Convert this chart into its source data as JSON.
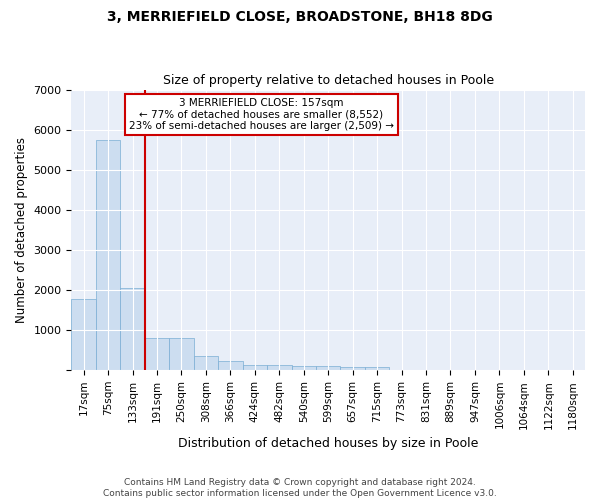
{
  "title": "3, MERRIEFIELD CLOSE, BROADSTONE, BH18 8DG",
  "subtitle": "Size of property relative to detached houses in Poole",
  "xlabel": "Distribution of detached houses by size in Poole",
  "ylabel": "Number of detached properties",
  "bar_color": "#ccddf0",
  "bar_edge_color": "#7aadd4",
  "background_color": "#e8eef8",
  "grid_color": "#ffffff",
  "annotation_text": "3 MERRIEFIELD CLOSE: 157sqm\n← 77% of detached houses are smaller (8,552)\n23% of semi-detached houses are larger (2,509) →",
  "annotation_box_color": "#cc0000",
  "vline_color": "#cc0000",
  "categories": [
    "17sqm",
    "75sqm",
    "133sqm",
    "191sqm",
    "250sqm",
    "308sqm",
    "366sqm",
    "424sqm",
    "482sqm",
    "540sqm",
    "599sqm",
    "657sqm",
    "715sqm",
    "773sqm",
    "831sqm",
    "889sqm",
    "947sqm",
    "1006sqm",
    "1064sqm",
    "1122sqm",
    "1180sqm"
  ],
  "values": [
    1780,
    5750,
    2060,
    800,
    800,
    360,
    230,
    130,
    120,
    110,
    100,
    90,
    80,
    0,
    0,
    0,
    0,
    0,
    0,
    0,
    0
  ],
  "ylim": [
    0,
    7000
  ],
  "yticks": [
    0,
    1000,
    2000,
    3000,
    4000,
    5000,
    6000,
    7000
  ],
  "footer": "Contains HM Land Registry data © Crown copyright and database right 2024.\nContains public sector information licensed under the Open Government Licence v3.0.",
  "figsize": [
    6.0,
    5.0
  ],
  "dpi": 100
}
